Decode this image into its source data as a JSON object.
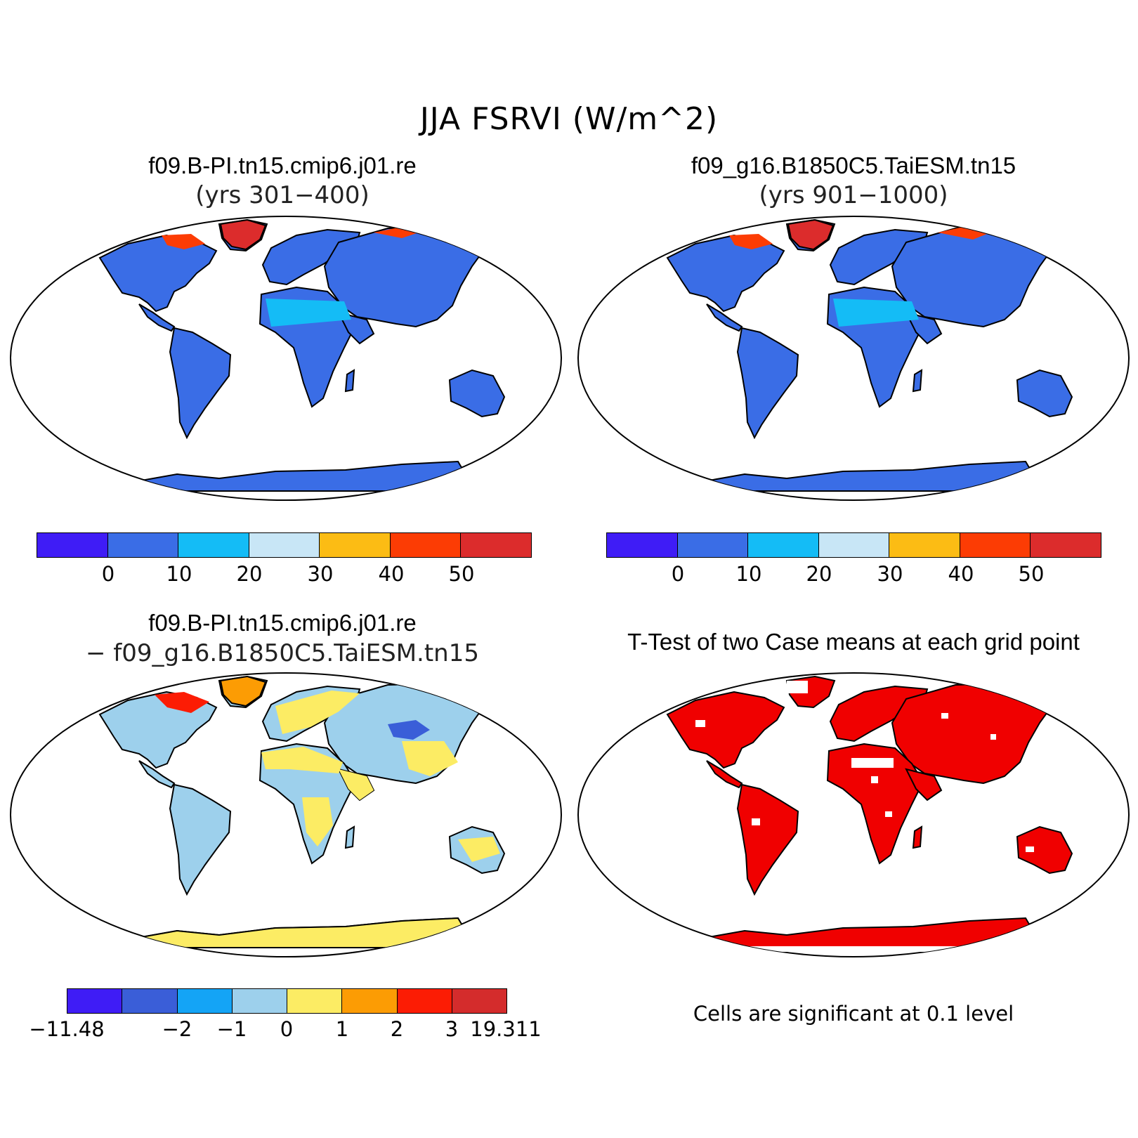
{
  "figure": {
    "title": "JJA FSRVI (W/m^2)"
  },
  "panels": [
    {
      "title": "f09.B-PI.tn15.cmip6.j01.re",
      "subtitle": "(yrs 301−400)",
      "colorbar": {
        "colors": [
          "#3f1cf6",
          "#3a6de6",
          "#14bcf6",
          "#c8e6f6",
          "#fcbc14",
          "#fc3c04",
          "#dc2c2c"
        ],
        "labels": [
          "0",
          "10",
          "20",
          "30",
          "40",
          "50"
        ]
      }
    },
    {
      "title": "f09_g16.B1850C5.TaiESM.tn15",
      "subtitle": "(yrs 901−1000)",
      "colorbar": {
        "colors": [
          "#3f1cf6",
          "#3a6de6",
          "#14bcf6",
          "#c8e6f6",
          "#fcbc14",
          "#fc3c04",
          "#dc2c2c"
        ],
        "labels": [
          "0",
          "10",
          "20",
          "30",
          "40",
          "50"
        ]
      }
    },
    {
      "title": "f09.B-PI.tn15.cmip6.j01.re",
      "subtitle": "− f09_g16.B1850C5.TaiESM.tn15",
      "colorbar": {
        "colors": [
          "#3f1cf6",
          "#3a5ed8",
          "#14a4f6",
          "#9dd0ec",
          "#fcec64",
          "#fc9c04",
          "#fc1c04",
          "#d42c2c"
        ],
        "labels": [
          "−11.48",
          "−2",
          "−1",
          "0",
          "1",
          "2",
          "3",
          "19.311"
        ]
      }
    },
    {
      "title": "T-Test of two Case means at each grid point",
      "note": "Cells are significant at 0.1 level",
      "fill_color": "#f00000"
    }
  ]
}
